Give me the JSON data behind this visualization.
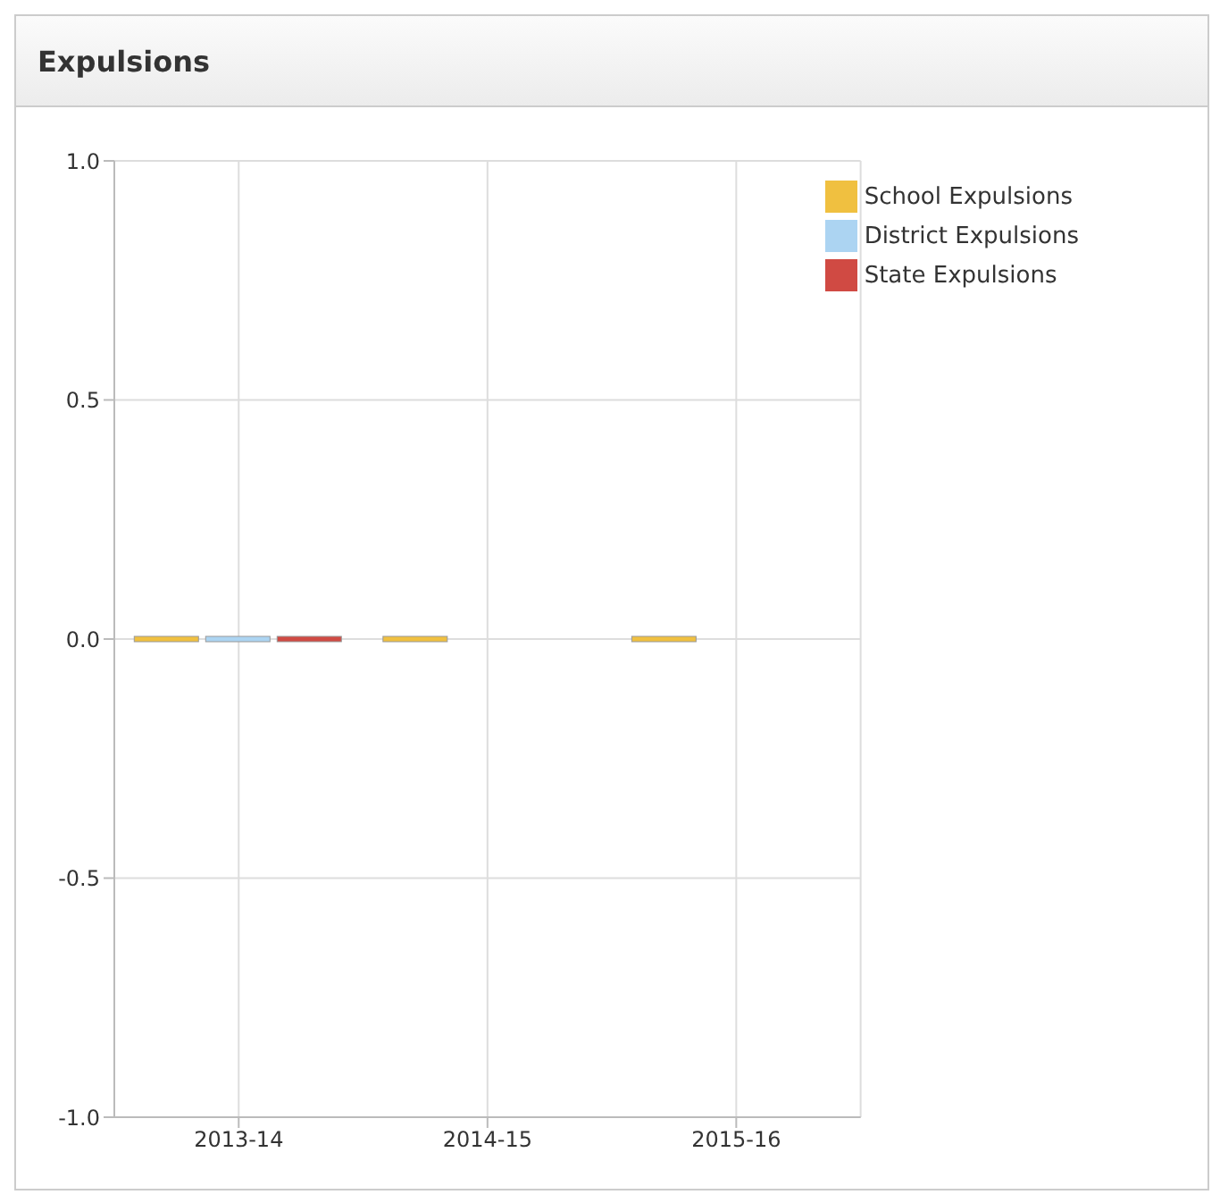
{
  "chart_data": {
    "type": "bar",
    "title": "Expulsions",
    "categories": [
      "2013-14",
      "2014-15",
      "2015-16"
    ],
    "series": [
      {
        "name": "School Expulsions",
        "color": "#f0c040",
        "values": [
          0,
          0,
          0
        ]
      },
      {
        "name": "District Expulsions",
        "color": "#acd4f2",
        "values": [
          0,
          null,
          null
        ]
      },
      {
        "name": "State Expulsions",
        "color": "#d04a43",
        "values": [
          0,
          null,
          null
        ]
      }
    ],
    "ylim": [
      -1,
      1
    ],
    "yticks": [
      {
        "value": -1,
        "label": "-1.0"
      },
      {
        "value": -0.5,
        "label": "-0.5"
      },
      {
        "value": 0,
        "label": "0.0"
      },
      {
        "value": 0.5,
        "label": "0.5"
      },
      {
        "value": 1,
        "label": "1.0"
      }
    ],
    "grid": true,
    "legend": "top right"
  }
}
